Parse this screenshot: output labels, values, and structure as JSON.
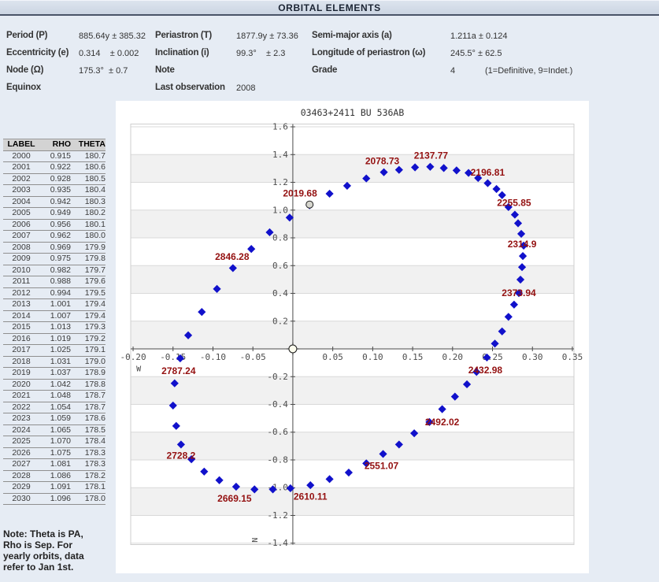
{
  "header": {
    "title": "ORBITAL ELEMENTS"
  },
  "elements_table": {
    "rows": [
      {
        "cells": [
          {
            "label": "Period (P)",
            "value": "885.64y ± 385.32"
          },
          {
            "label": "Periastron (T)",
            "value": "1877.9y ± 73.36"
          },
          {
            "label": "Semi-major axis (a)",
            "value": "1.211a ± 0.124"
          }
        ]
      },
      {
        "cells": [
          {
            "label": "Eccentricity (e)",
            "value": "0.314    ± 0.002"
          },
          {
            "label": "Inclination (i)",
            "value": "99.3°    ± 2.3"
          },
          {
            "label": "Longitude of periastron (ω)",
            "value": "245.5° ± 62.5"
          }
        ]
      },
      {
        "cells": [
          {
            "label": "Node (Ω)",
            "value": "175.3°  ± 0.7"
          },
          {
            "label": "Note",
            "value": ""
          },
          {
            "label": "Grade",
            "value": "4",
            "note": "(1=Definitive, 9=Indet.)"
          }
        ]
      },
      {
        "cells": [
          {
            "label": "Equinox",
            "value": ""
          },
          {
            "label": "Last observation",
            "value": "2008"
          },
          {
            "label": "",
            "value": ""
          }
        ]
      }
    ]
  },
  "ephemeris_table": {
    "columns": [
      "LABEL",
      "RHO",
      "THETA"
    ],
    "rows": [
      [
        "2000",
        "0.915",
        "180.7"
      ],
      [
        "2001",
        "0.922",
        "180.6"
      ],
      [
        "2002",
        "0.928",
        "180.5"
      ],
      [
        "2003",
        "0.935",
        "180.4"
      ],
      [
        "2004",
        "0.942",
        "180.3"
      ],
      [
        "2005",
        "0.949",
        "180.2"
      ],
      [
        "2006",
        "0.956",
        "180.1"
      ],
      [
        "2007",
        "0.962",
        "180.0"
      ],
      [
        "2008",
        "0.969",
        "179.9"
      ],
      [
        "2009",
        "0.975",
        "179.8"
      ],
      [
        "2010",
        "0.982",
        "179.7"
      ],
      [
        "2011",
        "0.988",
        "179.6"
      ],
      [
        "2012",
        "0.994",
        "179.5"
      ],
      [
        "2013",
        "1.001",
        "179.4"
      ],
      [
        "2014",
        "1.007",
        "179.4"
      ],
      [
        "2015",
        "1.013",
        "179.3"
      ],
      [
        "2016",
        "1.019",
        "179.2"
      ],
      [
        "2017",
        "1.025",
        "179.1"
      ],
      [
        "2018",
        "1.031",
        "179.0"
      ],
      [
        "2019",
        "1.037",
        "178.9"
      ],
      [
        "2020",
        "1.042",
        "178.8"
      ],
      [
        "2021",
        "1.048",
        "178.7"
      ],
      [
        "2022",
        "1.054",
        "178.7"
      ],
      [
        "2023",
        "1.059",
        "178.6"
      ],
      [
        "2024",
        "1.065",
        "178.5"
      ],
      [
        "2025",
        "1.070",
        "178.4"
      ],
      [
        "2026",
        "1.075",
        "178.3"
      ],
      [
        "2027",
        "1.081",
        "178.3"
      ],
      [
        "2028",
        "1.086",
        "178.2"
      ],
      [
        "2029",
        "1.091",
        "178.1"
      ],
      [
        "2030",
        "1.096",
        "178.0"
      ]
    ]
  },
  "note": {
    "lines": [
      "Note: Theta is PA,",
      "Rho is Sep. For",
      "yearly orbits, data",
      "refer to Jan 1st."
    ]
  },
  "chart_data": {
    "type": "scatter",
    "title": "03463+2411 BU  536AB",
    "xlim": [
      -0.203,
      0.352
    ],
    "ylim": [
      -1.41,
      1.62
    ],
    "x_ticks": [
      {
        "label": "-0.20",
        "x": -0.2
      },
      {
        "label": "-0.15",
        "x": -0.15
      },
      {
        "label": "-0.10",
        "x": -0.1
      },
      {
        "label": "-0.05",
        "x": -0.05
      },
      {
        "label": "0.05",
        "x": 0.05
      },
      {
        "label": "0.10",
        "x": 0.1
      },
      {
        "label": "0.15",
        "x": 0.15
      },
      {
        "label": "0.20",
        "x": 0.2
      },
      {
        "label": "0.25",
        "x": 0.25
      },
      {
        "label": "0.30",
        "x": 0.3
      },
      {
        "label": "0.35",
        "x": 0.35
      }
    ],
    "y_ticks": [
      {
        "label": "1.6",
        "y": 1.6
      },
      {
        "label": "1.4",
        "y": 1.4
      },
      {
        "label": "1.2",
        "y": 1.2
      },
      {
        "label": "1.0",
        "y": 1.0
      },
      {
        "label": "0.8",
        "y": 0.8
      },
      {
        "label": "0.6",
        "y": 0.6
      },
      {
        "label": "0.4",
        "y": 0.4
      },
      {
        "label": "0.2",
        "y": 0.2
      },
      {
        "label": "-0.2",
        "y": -0.2
      },
      {
        "label": "-0.4",
        "y": -0.4
      },
      {
        "label": "-0.6",
        "y": -0.6
      },
      {
        "label": "-0.8",
        "y": -0.8
      },
      {
        "label": "-1.0",
        "y": -1.0
      },
      {
        "label": "-1.2",
        "y": -1.2
      },
      {
        "label": "-1.4",
        "y": -1.4
      }
    ],
    "stripe_bands": [
      [
        1.2,
        1.4
      ],
      [
        0.8,
        1.0
      ],
      [
        0.4,
        0.6
      ],
      [
        0.0,
        0.2
      ],
      [
        -0.4,
        -0.2
      ],
      [
        -0.8,
        -0.6
      ],
      [
        -1.2,
        -1.0
      ]
    ],
    "direction_labels": {
      "west": {
        "text": "W",
        "x": -0.193,
        "y": -0.162
      },
      "north": {
        "text": "N",
        "x": -0.0443,
        "y": -1.377
      }
    },
    "points": [
      [
        0.046,
        1.118
      ],
      [
        0.068,
        1.175
      ],
      [
        0.092,
        1.228
      ],
      [
        0.114,
        1.273
      ],
      [
        0.133,
        1.29
      ],
      [
        0.153,
        1.308
      ],
      [
        0.172,
        1.312
      ],
      [
        0.189,
        1.303
      ],
      [
        0.205,
        1.286
      ],
      [
        0.22,
        1.268
      ],
      [
        0.232,
        1.231
      ],
      [
        0.244,
        1.194
      ],
      [
        0.255,
        1.152
      ],
      [
        0.262,
        1.108
      ],
      [
        0.27,
        1.022
      ],
      [
        0.278,
        0.967
      ],
      [
        0.282,
        0.905
      ],
      [
        0.286,
        0.829
      ],
      [
        0.289,
        0.744
      ],
      [
        0.288,
        0.669
      ],
      [
        0.287,
        0.589
      ],
      [
        0.285,
        0.499
      ],
      [
        0.283,
        0.402
      ],
      [
        0.277,
        0.319
      ],
      [
        0.27,
        0.231
      ],
      [
        0.262,
        0.126
      ],
      [
        0.253,
        0.038
      ],
      [
        0.243,
        -0.062
      ],
      [
        0.23,
        -0.166
      ],
      [
        0.218,
        -0.255
      ],
      [
        0.203,
        -0.344
      ],
      [
        0.187,
        -0.434
      ],
      [
        0.171,
        -0.527
      ],
      [
        0.152,
        -0.608
      ],
      [
        0.133,
        -0.689
      ],
      [
        0.113,
        -0.757
      ],
      [
        0.092,
        -0.825
      ],
      [
        0.07,
        -0.891
      ],
      [
        0.046,
        -0.938
      ],
      [
        0.022,
        -0.982
      ],
      [
        -0.003,
        -1.004
      ],
      [
        -0.025,
        -1.012
      ],
      [
        -0.048,
        -1.012
      ],
      [
        -0.071,
        -0.993
      ],
      [
        -0.092,
        -0.946
      ],
      [
        -0.111,
        -0.884
      ],
      [
        -0.127,
        -0.795
      ],
      [
        -0.14,
        -0.689
      ],
      [
        -0.146,
        -0.555
      ],
      [
        -0.15,
        -0.408
      ],
      [
        -0.148,
        -0.248
      ],
      [
        -0.141,
        -0.068
      ],
      [
        -0.131,
        0.098
      ],
      [
        -0.114,
        0.266
      ],
      [
        -0.095,
        0.432
      ],
      [
        -0.075,
        0.582
      ],
      [
        -0.052,
        0.72
      ],
      [
        -0.029,
        0.84
      ],
      [
        -0.004,
        0.946
      ],
      [
        0.021,
        1.035
      ]
    ],
    "epoch_labels": [
      {
        "text": "2019.68",
        "x": 0.009,
        "y": 1.122
      },
      {
        "text": "2078.73",
        "x": 0.112,
        "y": 1.354
      },
      {
        "text": "2137.77",
        "x": 0.173,
        "y": 1.394
      },
      {
        "text": "2196.81",
        "x": 0.244,
        "y": 1.272
      },
      {
        "text": "2255.85",
        "x": 0.277,
        "y": 1.054
      },
      {
        "text": "2314.9",
        "x": 0.287,
        "y": 0.754
      },
      {
        "text": "2373.94",
        "x": 0.283,
        "y": 0.402
      },
      {
        "text": "2432.98",
        "x": 0.241,
        "y": -0.153
      },
      {
        "text": "2492.02",
        "x": 0.187,
        "y": -0.527
      },
      {
        "text": "2551.07",
        "x": 0.111,
        "y": -0.844
      },
      {
        "text": "2610.11",
        "x": 0.022,
        "y": -1.065
      },
      {
        "text": "2669.15",
        "x": -0.073,
        "y": -1.077
      },
      {
        "text": "2728.2",
        "x": -0.14,
        "y": -0.77
      },
      {
        "text": "2787.24",
        "x": -0.143,
        "y": -0.159
      },
      {
        "text": "2846.28",
        "x": -0.076,
        "y": 0.663
      }
    ],
    "markers": {
      "origin": {
        "x": 0,
        "y": 0
      },
      "last_observation": {
        "x": 0.021,
        "y": 1.04
      }
    },
    "colors": {
      "point": "#1111cb",
      "label": "#941111",
      "band": "#f1f1f1",
      "grid": "#d9d9d9",
      "axis": "#4a4a4a",
      "tick_text": "#4d4d4d",
      "border": "#cfcfcf",
      "origin_fill": "#fdfdee",
      "obs_fill": "#d6d6ce"
    }
  }
}
